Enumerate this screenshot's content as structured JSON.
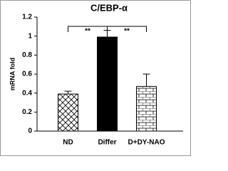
{
  "chart_data": {
    "type": "bar",
    "title": "C/EBP-α",
    "y_label": "mRNA fold",
    "categories": [
      "ND",
      "Differ",
      "D+DY-NAO"
    ],
    "values": [
      0.39,
      0.99,
      0.47
    ],
    "errors": [
      0.03,
      0.07,
      0.13
    ],
    "patterns": [
      "crosshatch",
      "solid",
      "brick"
    ],
    "color": "#000000",
    "ylim": [
      0,
      1.2
    ],
    "yticks": [
      0,
      0.2,
      0.4,
      0.6,
      0.8,
      1,
      1.2
    ],
    "annotations": [
      "**",
      "**"
    ]
  }
}
